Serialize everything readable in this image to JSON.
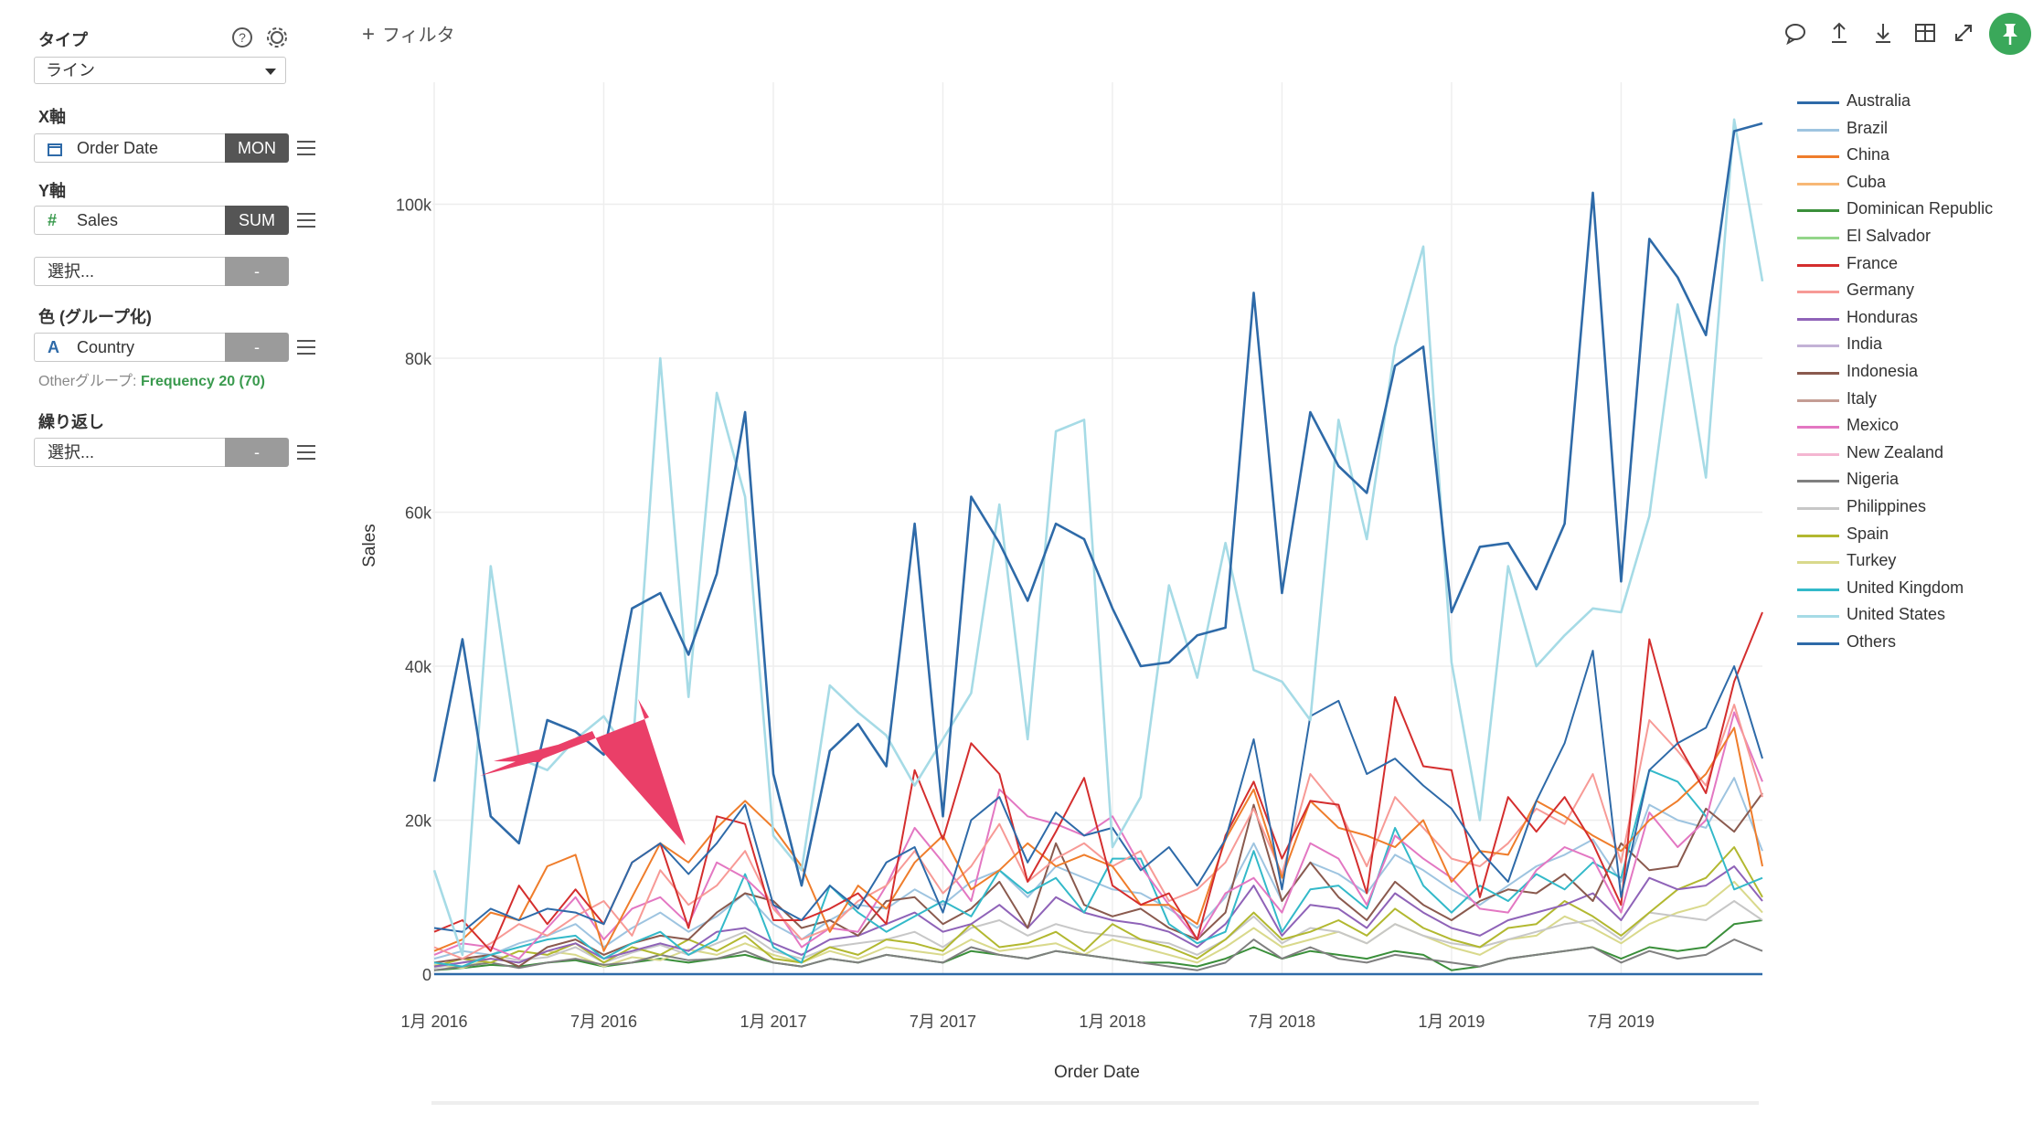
{
  "sidebar": {
    "type_label": "タイプ",
    "type_value": "ライン",
    "x_label": "X軸",
    "x_field": "Order Date",
    "x_agg": "MON",
    "y_label": "Y軸",
    "y_field": "Sales",
    "y_agg": "SUM",
    "extra_select": "選択...",
    "extra_agg": "-",
    "color_label": "色 (グループ化)",
    "color_field": "Country",
    "color_agg": "-",
    "other_group_prefix": "Otherグループ: ",
    "other_group_value": "Frequency 20 (70)",
    "repeat_label": "繰り返し",
    "repeat_select": "選択...",
    "repeat_agg": "-"
  },
  "header": {
    "filter_label": "フィルタ",
    "icons": [
      "comment-icon",
      "upload-icon",
      "download-icon",
      "table-icon",
      "expand-icon",
      "pin-icon"
    ]
  },
  "chart_data": {
    "type": "line",
    "title": "",
    "xlabel": "Order Date",
    "ylabel": "Sales",
    "ylim": [
      0,
      115000
    ],
    "x_tick_labels": [
      "1月 2016",
      "7月 2016",
      "1月 2017",
      "7月 2017",
      "1月 2018",
      "7月 2018",
      "1月 2019",
      "7月 2019"
    ],
    "y_tick_labels": [
      "0",
      "20k",
      "40k",
      "60k",
      "80k",
      "100k"
    ],
    "y_ticks": [
      0,
      20000,
      40000,
      60000,
      80000,
      100000
    ],
    "x_start": "2016-01",
    "x_end": "2019-12",
    "grid": true,
    "legend_position": "right",
    "legend": [
      "Australia",
      "Brazil",
      "China",
      "Cuba",
      "Dominican Republic",
      "El Salvador",
      "France",
      "Germany",
      "Honduras",
      "India",
      "Indonesia",
      "Italy",
      "Mexico",
      "New Zealand",
      "Nigeria",
      "Philippines",
      "Spain",
      "Turkey",
      "United Kingdom",
      "United States",
      "Others"
    ],
    "colors": {
      "Australia": "#2e6aa8",
      "Brazil": "#9ec4e0",
      "China": "#ef7d2b",
      "Cuba": "#f7b775",
      "Dominican Republic": "#3a8f3a",
      "El Salvador": "#93d68a",
      "France": "#d42e2e",
      "Germany": "#f79a96",
      "Honduras": "#8f63b8",
      "India": "#c3b2d6",
      "Indonesia": "#8a5a4e",
      "Italy": "#c49d94",
      "Mexico": "#e377c2",
      "New Zealand": "#f4b6d1",
      "Nigeria": "#7f7f7f",
      "Philippines": "#c7c7c7",
      "Spain": "#b2b830",
      "Turkey": "#d9d98c",
      "United Kingdom": "#33b9c9",
      "United States": "#a6dbe6",
      "Others": "#2e6aa8"
    },
    "series": [
      {
        "name": "Others",
        "values": [
          25000,
          43500,
          20500,
          17000,
          33000,
          31500,
          28500,
          47500,
          49500,
          41500,
          52000,
          73000,
          26000,
          11500,
          29000,
          32500,
          27000,
          58500,
          20500,
          62000,
          56000,
          48500,
          58500,
          56500,
          47500,
          40000,
          40500,
          44000,
          45000,
          88500,
          49500,
          73000,
          66000,
          62500,
          79000,
          81500,
          47000,
          55500,
          56000,
          50000,
          58500,
          101500,
          51000,
          95500,
          90500,
          83000,
          109500,
          110500
        ]
      },
      {
        "name": "United States",
        "values": [
          13500,
          2500,
          53000,
          28000,
          26500,
          30500,
          33500,
          28000,
          80000,
          36000,
          75500,
          62000,
          18000,
          13500,
          37500,
          34000,
          31000,
          24500,
          30500,
          36500,
          61000,
          30500,
          70500,
          72000,
          16500,
          23000,
          50500,
          38500,
          56000,
          39500,
          38000,
          33000,
          72000,
          56500,
          81500,
          94500,
          40500,
          20000,
          53000,
          40000,
          44000,
          47500,
          47000,
          59500,
          87000,
          64500,
          111000,
          90000
        ]
      },
      {
        "name": "Australia",
        "values": [
          6000,
          5500,
          8500,
          7000,
          8500,
          8000,
          6500,
          14500,
          17000,
          13000,
          17000,
          22000,
          9000,
          7000,
          11500,
          8500,
          14500,
          16500,
          8000,
          20000,
          23000,
          14500,
          21000,
          18000,
          19000,
          13500,
          16500,
          11500,
          17500,
          30500,
          11000,
          33500,
          35500,
          26000,
          28000,
          24500,
          21500,
          16000,
          12000,
          22500,
          30000,
          42000,
          10000,
          26500,
          30000,
          32000,
          40000,
          28000
        ]
      },
      {
        "name": "France",
        "values": [
          5500,
          7000,
          3000,
          11500,
          6500,
          11000,
          6500,
          14500,
          17000,
          6000,
          20500,
          19500,
          7000,
          7000,
          8500,
          10500,
          6500,
          26500,
          17500,
          30000,
          26000,
          12000,
          18500,
          25500,
          11500,
          9000,
          10500,
          4500,
          18000,
          25000,
          15000,
          22500,
          22000,
          10500,
          36000,
          27000,
          26500,
          10000,
          23000,
          18500,
          23000,
          17000,
          9000,
          43500,
          30000,
          23500,
          38000,
          47000
        ]
      },
      {
        "name": "China",
        "values": [
          3000,
          4500,
          8000,
          7000,
          14000,
          15500,
          3000,
          10000,
          17000,
          14500,
          19000,
          22500,
          19000,
          14000,
          5500,
          11500,
          8500,
          14500,
          18000,
          11000,
          13500,
          17000,
          14000,
          15500,
          14000,
          9000,
          9000,
          6500,
          17500,
          24000,
          12500,
          22500,
          19000,
          18000,
          16500,
          20000,
          12000,
          16000,
          15500,
          22500,
          20500,
          18000,
          16000,
          20000,
          22500,
          26000,
          32000,
          14000
        ]
      },
      {
        "name": "Germany",
        "values": [
          3500,
          2000,
          4000,
          6500,
          5000,
          7500,
          9500,
          5000,
          13500,
          9000,
          11500,
          16000,
          8500,
          4500,
          6000,
          9500,
          11500,
          16000,
          10500,
          14000,
          19500,
          12000,
          15000,
          17000,
          14000,
          16000,
          9500,
          11000,
          14500,
          21500,
          13000,
          26000,
          21500,
          14000,
          23000,
          19000,
          15000,
          14000,
          17000,
          21500,
          19500,
          26000,
          14500,
          33000,
          29000,
          24500,
          35000,
          23000
        ]
      },
      {
        "name": "Mexico",
        "values": [
          2500,
          4000,
          3500,
          2000,
          6000,
          10000,
          4500,
          8500,
          10000,
          6500,
          14500,
          12500,
          9000,
          3500,
          6000,
          5500,
          11500,
          19000,
          14500,
          9500,
          24000,
          20500,
          19500,
          18000,
          20500,
          14000,
          9000,
          4500,
          10500,
          12500,
          8000,
          17000,
          15000,
          9000,
          18000,
          15000,
          12500,
          8500,
          8000,
          13500,
          16500,
          15000,
          8000,
          21000,
          16500,
          20000,
          34000,
          25000
        ]
      },
      {
        "name": "United Kingdom",
        "values": [
          1500,
          1000,
          2500,
          3500,
          4500,
          5000,
          2000,
          4000,
          5500,
          2500,
          4500,
          13000,
          3500,
          1500,
          11500,
          8000,
          5500,
          7500,
          9500,
          7500,
          13500,
          10500,
          12500,
          8000,
          15000,
          15000,
          6500,
          4000,
          5500,
          16000,
          5500,
          11000,
          11500,
          8500,
          19000,
          11500,
          8000,
          11500,
          9500,
          13000,
          11000,
          14500,
          12500,
          26500,
          25000,
          20500,
          11000,
          12500
        ]
      },
      {
        "name": "Indonesia",
        "values": [
          1500,
          2000,
          2500,
          1000,
          3500,
          4500,
          2500,
          4000,
          5000,
          4500,
          8000,
          10500,
          9500,
          6000,
          7000,
          5000,
          9500,
          10000,
          6500,
          8500,
          12000,
          6000,
          17000,
          9000,
          7500,
          8500,
          6000,
          4500,
          8000,
          22000,
          9500,
          14500,
          10000,
          7000,
          12000,
          9000,
          7000,
          9500,
          11000,
          10500,
          13000,
          9500,
          17000,
          13500,
          14000,
          21500,
          18500,
          23500
        ]
      },
      {
        "name": "Honduras",
        "values": [
          1000,
          1500,
          2000,
          1500,
          3000,
          4000,
          2000,
          3000,
          4000,
          3000,
          5500,
          6000,
          4000,
          2500,
          4500,
          5000,
          6500,
          8000,
          5500,
          6500,
          9000,
          6000,
          10000,
          8000,
          7000,
          6500,
          5500,
          3500,
          6500,
          11500,
          5000,
          9000,
          8500,
          6000,
          10500,
          8000,
          6000,
          5000,
          7000,
          8000,
          9000,
          10500,
          7000,
          12500,
          11000,
          11500,
          14000,
          9500
        ]
      },
      {
        "name": "Brazil",
        "values": [
          2000,
          3000,
          2500,
          4000,
          5000,
          6500,
          3500,
          6000,
          8000,
          5500,
          7500,
          10500,
          6500,
          4500,
          7000,
          9000,
          8500,
          11000,
          9000,
          12000,
          13500,
          10000,
          14000,
          12500,
          11000,
          10500,
          8500,
          6000,
          10000,
          17000,
          9500,
          14500,
          13000,
          10500,
          15500,
          13500,
          11000,
          9000,
          11500,
          14000,
          15500,
          17500,
          12000,
          22000,
          20000,
          19000,
          25500,
          16000
        ]
      },
      {
        "name": "Spain",
        "values": [
          1000,
          2000,
          1500,
          3000,
          2500,
          4000,
          1500,
          3500,
          2500,
          4500,
          3000,
          5000,
          2000,
          1500,
          3500,
          2500,
          4500,
          4000,
          3000,
          6500,
          3500,
          4000,
          5500,
          3000,
          6500,
          4500,
          3500,
          2000,
          4500,
          8000,
          4500,
          5500,
          7000,
          5000,
          8500,
          6000,
          4500,
          3500,
          6000,
          6500,
          9500,
          7500,
          5000,
          8000,
          11000,
          12500,
          16500,
          10000
        ]
      },
      {
        "name": "Nigeria",
        "values": [
          500,
          1000,
          1500,
          800,
          1500,
          2000,
          1200,
          1500,
          2500,
          1800,
          2000,
          3000,
          1500,
          1000,
          2000,
          1500,
          2500,
          2000,
          1500,
          3500,
          2500,
          2000,
          3000,
          2500,
          2000,
          1500,
          1000,
          500,
          1500,
          4500,
          2000,
          3500,
          2000,
          1500,
          2500,
          2000,
          1500,
          1000,
          2000,
          2500,
          3000,
          3500,
          1500,
          3000,
          2000,
          2500,
          4500,
          3000
        ]
      },
      {
        "name": "Philippines",
        "values": [
          800,
          1500,
          2500,
          1800,
          2200,
          3500,
          1500,
          2800,
          3800,
          2500,
          4000,
          5500,
          3000,
          2000,
          3500,
          4000,
          4500,
          5500,
          3500,
          6000,
          7000,
          5000,
          6500,
          5500,
          5000,
          4500,
          4000,
          2500,
          4500,
          7500,
          4000,
          6000,
          5500,
          4000,
          6500,
          5000,
          4000,
          3500,
          4500,
          5500,
          6500,
          7000,
          4500,
          8000,
          7500,
          7000,
          9500,
          7000
        ]
      },
      {
        "name": "Turkey",
        "values": [
          1200,
          800,
          2000,
          1500,
          3000,
          2500,
          1000,
          2200,
          1800,
          3200,
          2500,
          4000,
          2500,
          1500,
          3000,
          2000,
          3500,
          3000,
          2500,
          4500,
          3000,
          3500,
          4000,
          2500,
          4500,
          3500,
          2500,
          1500,
          3500,
          6000,
          3500,
          4500,
          5500,
          4000,
          6500,
          5000,
          3500,
          2500,
          4500,
          5000,
          7500,
          6000,
          4000,
          6500,
          8000,
          9000,
          12000,
          8000
        ]
      },
      {
        "name": "Dominican Republic",
        "values": [
          500,
          800,
          1200,
          1000,
          1500,
          1800,
          1000,
          1500,
          2000,
          1500,
          2000,
          2500,
          1500,
          1000,
          2000,
          1500,
          2500,
          2000,
          1500,
          3000,
          2500,
          2000,
          3000,
          2500,
          2000,
          1500,
          1500,
          1000,
          2000,
          3500,
          2000,
          3000,
          2500,
          2000,
          3000,
          2500,
          500,
          1000,
          2000,
          2500,
          3000,
          3500,
          2000,
          3500,
          3000,
          3500,
          6500,
          7000
        ]
      },
      {
        "name": "Others",
        "values": [
          0,
          0,
          0,
          0,
          0,
          0,
          0,
          0,
          0,
          0,
          0,
          0,
          0,
          0,
          0,
          0,
          0,
          0,
          0,
          0,
          0,
          0,
          0,
          0,
          0,
          0,
          0,
          0,
          0,
          0,
          0,
          0,
          0,
          0,
          0,
          0,
          0,
          0,
          0,
          0,
          0,
          0,
          0,
          0,
          0,
          0,
          0,
          0
        ]
      }
    ]
  }
}
